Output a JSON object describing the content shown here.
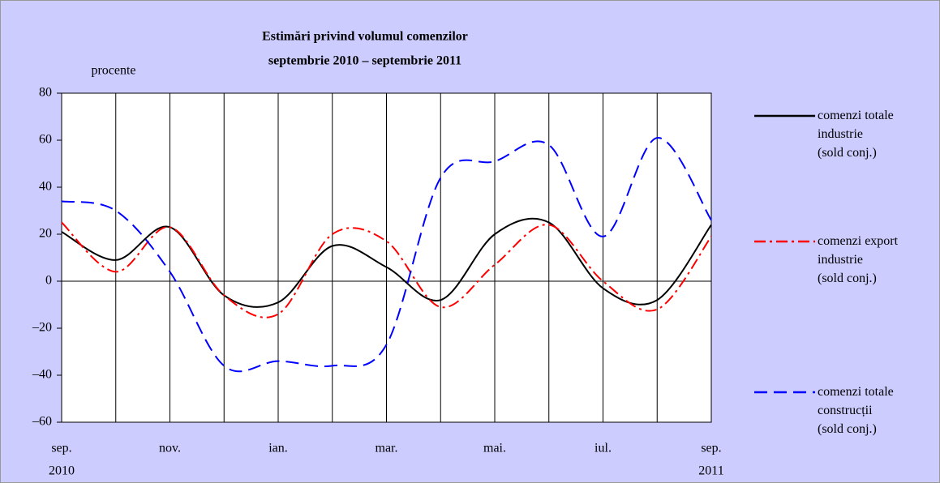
{
  "chart_data": {
    "type": "line",
    "title": "Estimări privind volumul comenzilor",
    "subtitle": "septembrie 2010 – septembrie 2011",
    "y_label": "procente",
    "categories": [
      "sep.",
      null,
      "nov.",
      null,
      "ian.",
      null,
      "mar.",
      null,
      "mai.",
      null,
      "iul.",
      null,
      "sep."
    ],
    "start_year": "2010",
    "end_year": "2011",
    "ylim": [
      -60,
      80
    ],
    "yticks": [
      {
        "value": -60,
        "label": "–60"
      },
      {
        "value": -40,
        "label": "–40"
      },
      {
        "value": -20,
        "label": "–20"
      },
      0,
      20,
      40,
      60,
      80
    ],
    "series": [
      {
        "name": "comenzi totale\nindustrie\n(sold conj.)",
        "color": "#000000",
        "style": "solid",
        "values": [
          21,
          9,
          23,
          -6,
          -9,
          15,
          6,
          -8,
          20,
          25,
          -3,
          -8,
          24
        ]
      },
      {
        "name": "comenzi export\nindustrie\n(sold conj.)",
        "color": "#ff0000",
        "style": "dashdot",
        "values": [
          25,
          4,
          23,
          -6,
          -14,
          20,
          17,
          -11,
          7,
          24,
          0,
          -12,
          19
        ]
      },
      {
        "name": "comenzi totale\nconstrucții\n(sold conj.)",
        "color": "#0000ff",
        "style": "dashed",
        "values": [
          34,
          30,
          4,
          -36,
          -34,
          -36,
          -27,
          44,
          51,
          58,
          19,
          61,
          26
        ]
      }
    ]
  }
}
